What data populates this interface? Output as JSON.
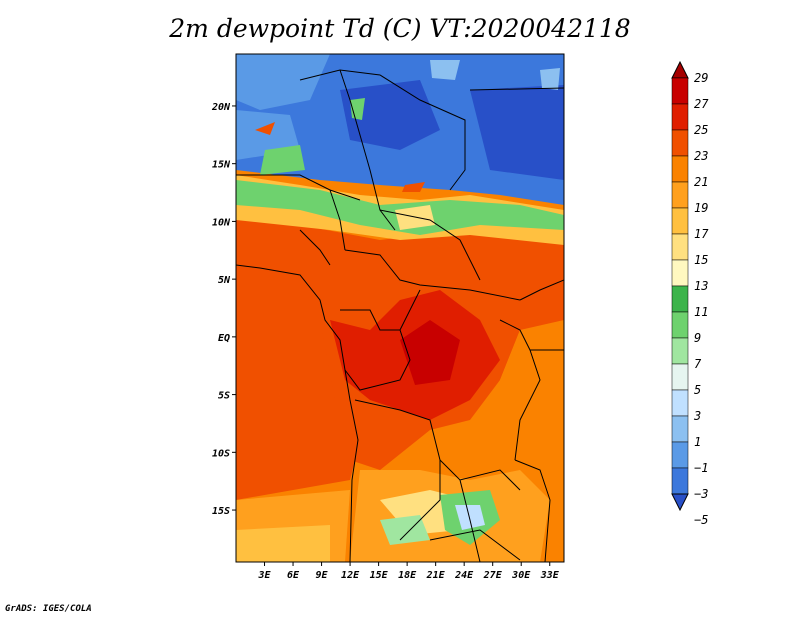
{
  "title": "2m dewpoint Td (C) VT:2020042118",
  "footer": "GrADS: IGES/COLA",
  "map": {
    "lat_labels": [
      "20N",
      "15N",
      "10N",
      "5N",
      "EQ",
      "5S",
      "10S",
      "15S"
    ],
    "lat_values": [
      20,
      15,
      10,
      5,
      0,
      -5,
      -10,
      -15
    ],
    "lon_labels": [
      "3E",
      "6E",
      "9E",
      "12E",
      "15E",
      "18E",
      "21E",
      "24E",
      "27E",
      "30E",
      "33E"
    ],
    "lon_values": [
      3,
      6,
      9,
      12,
      15,
      18,
      21,
      24,
      27,
      30,
      33
    ],
    "lat_range": [
      -19.5,
      24.5
    ],
    "lon_range": [
      0,
      34.5
    ]
  },
  "legend": {
    "labels": [
      "29",
      "27",
      "25",
      "23",
      "21",
      "19",
      "17",
      "15",
      "13",
      "11",
      "9",
      "7",
      "5",
      "3",
      "1",
      "−1",
      "−3",
      "−5"
    ],
    "colors": [
      "#a50000",
      "#c80000",
      "#e01e00",
      "#f05000",
      "#fa8200",
      "#ffa01e",
      "#ffc040",
      "#ffe080",
      "#fff8c0",
      "#3cb44b",
      "#6ed26e",
      "#a0e6a0",
      "#e6f5f0",
      "#c0e0ff",
      "#8cc0f0",
      "#5a9ae6",
      "#3c78dc",
      "#2850c8"
    ]
  }
}
